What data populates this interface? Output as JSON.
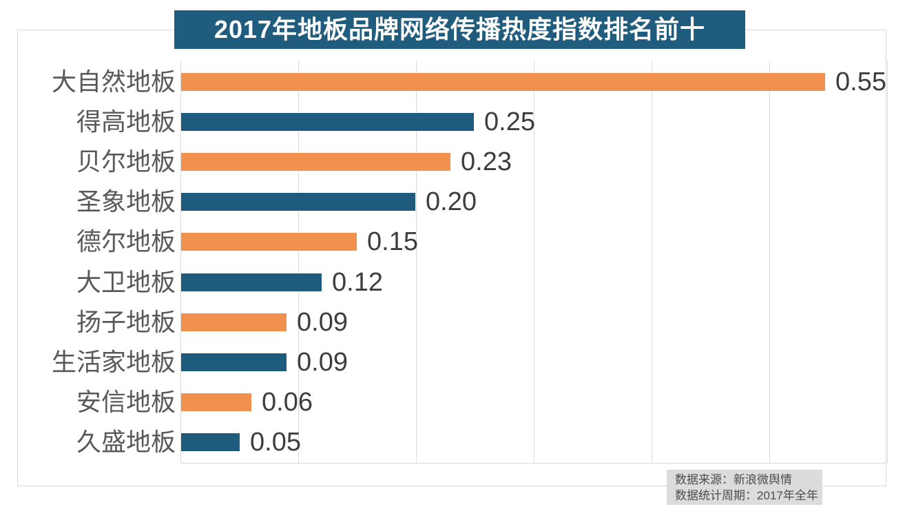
{
  "title": "2017年地板品牌网络传播热度指数排名前十",
  "chart_data": {
    "type": "bar",
    "orientation": "horizontal",
    "title": "2017年地板品牌网络传播热度指数排名前十",
    "categories": [
      "大自然地板",
      "得高地板",
      "贝尔地板",
      "圣象地板",
      "德尔地板",
      "大卫地板",
      "扬子地板",
      "生活家地板",
      "安信地板",
      "久盛地板"
    ],
    "values": [
      0.55,
      0.25,
      0.23,
      0.2,
      0.15,
      0.12,
      0.09,
      0.09,
      0.06,
      0.05
    ],
    "value_labels": [
      "0.55",
      "0.25",
      "0.23",
      "0.20",
      "0.15",
      "0.12",
      "0.09",
      "0.09",
      "0.06",
      "0.05"
    ],
    "xlim": [
      0,
      0.6
    ],
    "gridline_values": [
      0,
      0.1,
      0.2,
      0.3,
      0.4,
      0.5,
      0.6
    ],
    "grid": "vertical gridlines only, no tick labels",
    "legend": null,
    "bar_color_alternation": [
      "#F0924E",
      "#1E5B7C"
    ]
  },
  "footer": {
    "source_line": "数据来源：新浪微舆情",
    "period_line": "数据统计周期：2017年全年"
  },
  "colors": {
    "bar_orange": "#F0924E",
    "bar_blue": "#1E5B7C",
    "title_bg": "#1F5C7D",
    "title_text": "#FFFFFF",
    "gridline": "#DADADA",
    "panel_border": "#D7D7D7",
    "category_text": "#595959",
    "value_text": "#3D3D3D",
    "footer_bg": "#DCDCDC",
    "footer_text": "#4C4C4C"
  }
}
